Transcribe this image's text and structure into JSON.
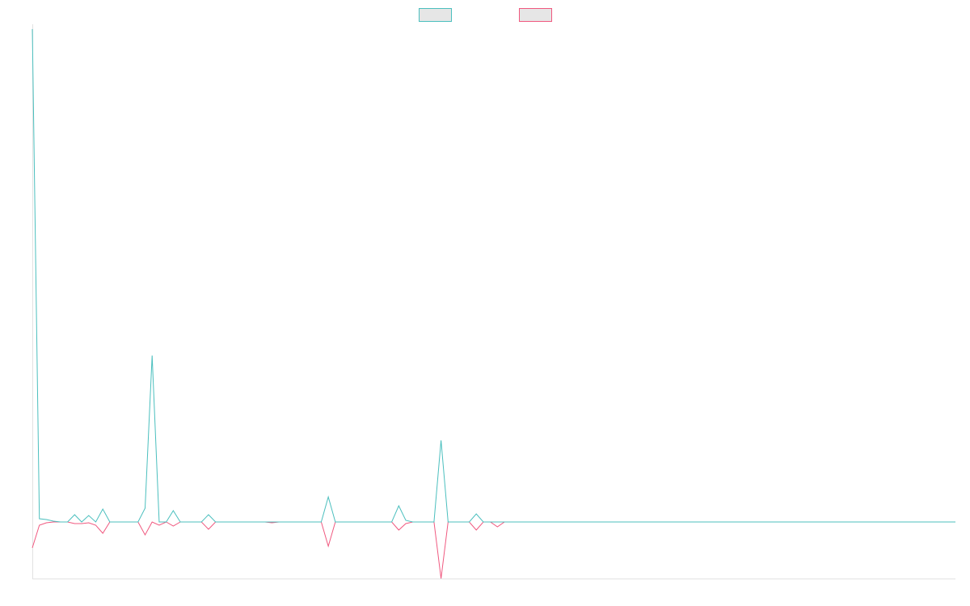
{
  "chart_data": {
    "type": "line",
    "title": "",
    "xlabel": "",
    "ylabel": "",
    "grid": false,
    "legend": "top-center",
    "x": [
      0,
      1,
      2,
      3,
      4,
      5,
      6,
      7,
      8,
      9,
      10,
      11,
      12,
      13,
      14,
      15,
      16,
      17,
      18,
      19,
      20,
      21,
      22,
      23,
      24,
      25,
      26,
      27,
      28,
      29,
      30,
      31,
      32,
      33,
      34,
      35,
      36,
      37,
      38,
      39,
      40,
      41,
      42,
      43,
      44,
      45,
      46,
      47,
      48,
      49,
      50,
      51,
      52,
      53,
      54,
      55,
      56,
      57,
      58,
      59,
      60,
      61,
      62,
      63,
      64,
      65,
      66,
      67,
      68,
      69,
      70,
      71,
      72,
      73,
      74,
      75,
      76,
      77,
      78,
      79,
      80,
      81,
      82,
      83,
      84,
      85,
      86,
      87,
      88,
      89,
      90,
      91,
      92,
      93,
      94,
      95,
      96,
      97,
      98,
      99,
      100,
      101,
      102,
      103,
      104,
      105,
      106,
      107,
      108,
      109,
      110,
      111,
      112,
      113,
      114,
      115,
      116,
      117,
      118,
      119,
      120,
      121,
      122,
      123,
      124,
      125,
      126,
      127,
      128,
      129,
      130,
      131
    ],
    "xlim": [
      0,
      131
    ],
    "ylim": [
      -70,
      610
    ],
    "colors": [
      "#4bbfbe",
      "#f0587f"
    ],
    "series": [
      {
        "values": [
          610,
          4,
          3,
          1,
          0,
          0,
          9,
          0,
          8,
          0,
          16,
          0,
          0,
          0,
          0,
          0,
          17,
          206,
          0,
          0,
          14,
          0,
          0,
          0,
          0,
          9,
          0,
          0,
          0,
          0,
          0,
          0,
          0,
          0,
          0,
          0,
          0,
          0,
          0,
          0,
          0,
          0,
          31,
          0,
          0,
          0,
          0,
          0,
          0,
          0,
          0,
          0,
          20,
          2,
          0,
          0,
          0,
          0,
          101,
          0,
          0,
          0,
          0,
          10,
          0,
          0,
          0,
          0,
          0,
          0,
          0,
          0,
          0,
          0,
          0,
          0,
          0,
          0,
          0,
          0,
          0,
          0,
          0,
          0,
          0,
          0,
          0,
          0,
          0,
          0,
          0,
          0,
          0,
          0,
          0,
          0,
          0,
          0,
          0,
          0,
          0,
          0,
          0,
          0,
          0,
          0,
          0,
          0,
          0,
          0,
          0,
          0,
          0,
          0,
          0,
          0,
          0,
          0,
          0,
          0,
          0,
          0,
          0,
          0,
          0,
          0,
          0,
          0,
          0,
          0,
          0,
          0
        ]
      },
      {
        "values": [
          -32,
          -4,
          -1,
          0,
          0,
          0,
          -2,
          -2,
          -1,
          -4,
          -14,
          0,
          0,
          0,
          0,
          0,
          -16,
          0,
          -4,
          0,
          -5,
          0,
          0,
          0,
          0,
          -9,
          0,
          0,
          0,
          0,
          0,
          0,
          0,
          0,
          -1,
          0,
          0,
          0,
          0,
          0,
          0,
          0,
          -30,
          0,
          0,
          0,
          0,
          0,
          0,
          0,
          0,
          0,
          -10,
          -2,
          0,
          0,
          0,
          0,
          -70,
          0,
          0,
          0,
          0,
          -10,
          0,
          0,
          -6,
          0,
          0,
          0,
          0,
          0,
          0,
          0,
          0,
          0,
          0,
          0,
          0,
          0,
          0,
          0,
          0,
          0,
          0,
          0,
          0,
          0,
          0,
          0,
          0,
          0,
          0,
          0,
          0,
          0,
          0,
          0,
          0,
          0,
          0,
          0,
          0,
          0,
          0,
          0,
          0,
          0,
          0,
          0,
          0,
          0,
          0,
          0,
          0,
          0,
          0,
          0,
          0,
          0,
          0,
          0,
          0,
          0,
          0,
          0,
          0,
          0,
          0,
          0,
          0,
          0
        ]
      }
    ]
  }
}
